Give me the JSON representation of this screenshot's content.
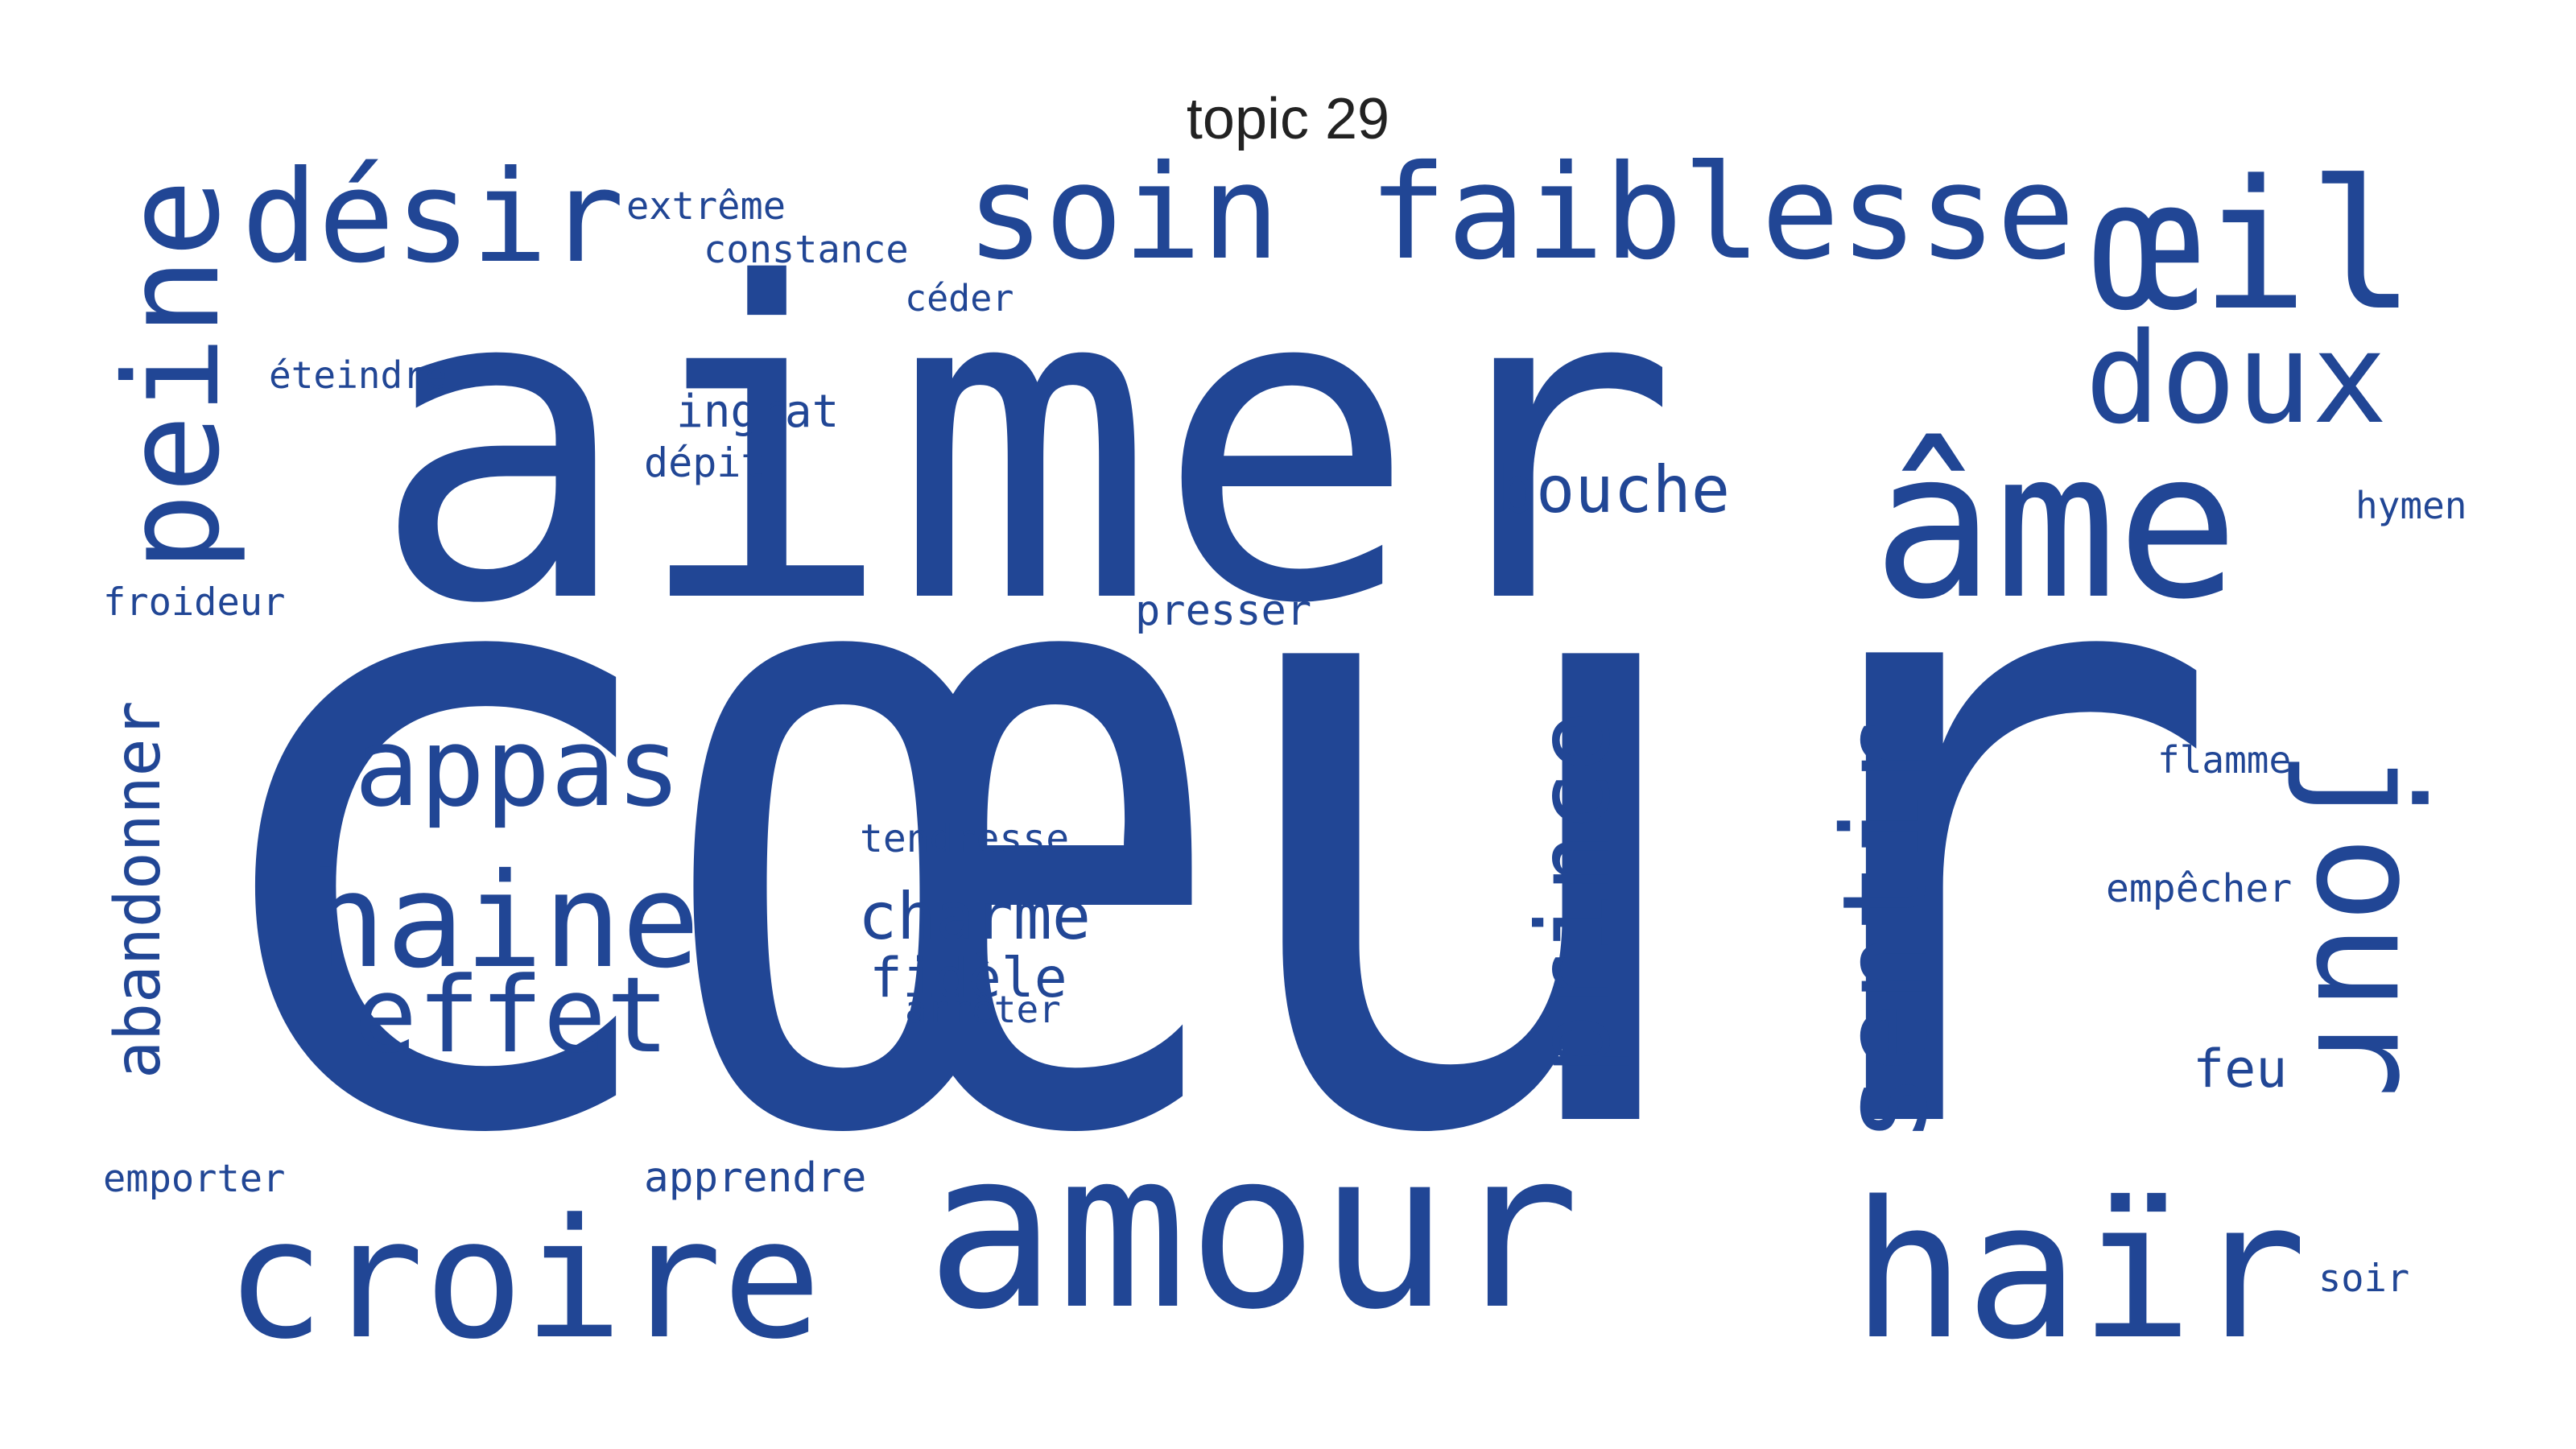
{
  "title": "topic 29",
  "word_color": "#214695",
  "words": [
    {
      "text": "cœur"
    },
    {
      "text": "aimer"
    },
    {
      "text": "amour"
    },
    {
      "text": "haïr"
    },
    {
      "text": "croire"
    },
    {
      "text": "âme"
    },
    {
      "text": "œil"
    },
    {
      "text": "soin"
    },
    {
      "text": "faiblesse"
    },
    {
      "text": "désir"
    },
    {
      "text": "peine"
    },
    {
      "text": "jour"
    },
    {
      "text": "doux"
    },
    {
      "text": "sentir"
    },
    {
      "text": "prince"
    },
    {
      "text": "haine"
    },
    {
      "text": "appas"
    },
    {
      "text": "effet"
    },
    {
      "text": "bouche"
    },
    {
      "text": "charme"
    },
    {
      "text": "fidèle"
    },
    {
      "text": "abandonner"
    },
    {
      "text": "feu"
    },
    {
      "text": "ingrat"
    },
    {
      "text": "tendresse"
    },
    {
      "text": "extrême"
    },
    {
      "text": "constance"
    },
    {
      "text": "céder"
    },
    {
      "text": "éteindre"
    },
    {
      "text": "dépit"
    },
    {
      "text": "presser"
    },
    {
      "text": "froideur"
    },
    {
      "text": "hymen"
    },
    {
      "text": "flamme"
    },
    {
      "text": "empêcher"
    },
    {
      "text": "arrêter"
    },
    {
      "text": "emporter"
    },
    {
      "text": "apprendre"
    },
    {
      "text": "soir"
    }
  ]
}
